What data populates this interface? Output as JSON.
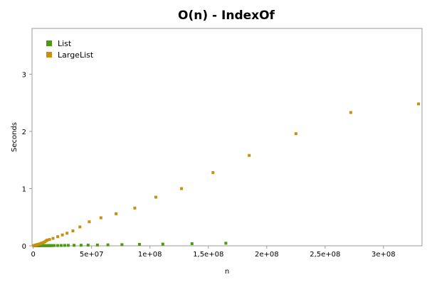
{
  "chart_data": {
    "type": "scatter",
    "title": "O(n) - IndexOf",
    "xlabel": "n",
    "ylabel": "Seconds",
    "xlim": [
      -1000000,
      333000000
    ],
    "ylim": [
      0,
      3.8
    ],
    "x_ticks": [
      0,
      50000000,
      100000000,
      150000000,
      200000000,
      250000000,
      300000000
    ],
    "x_tick_labels": [
      "0",
      "5e+07",
      "1e+08",
      "1,5e+08",
      "2e+08",
      "2,5e+08",
      "3e+08"
    ],
    "y_ticks": [
      0,
      1,
      2,
      3
    ],
    "y_tick_labels": [
      "0",
      "1",
      "2",
      "3"
    ],
    "grid": false,
    "legend_position": "top-left",
    "series": [
      {
        "name": "List",
        "color": "#4a9a12",
        "x": [
          500000,
          1000000,
          1500000,
          2000000,
          2500000,
          3000000,
          3500000,
          4000000,
          5000000,
          6000000,
          7000000,
          8000000,
          9000000,
          10000000,
          11000000,
          12000000,
          13000000,
          14000000,
          15000000,
          16000000,
          18000000,
          21000000,
          24000000,
          27000000,
          30000000,
          35000000,
          41000000,
          47000000,
          55000000,
          64000000,
          76000000,
          91000000,
          111000000,
          136000000,
          165000000
        ],
        "y": [
          0.001,
          0.001,
          0.001,
          0.001,
          0.001,
          0.002,
          0.002,
          0.002,
          0.002,
          0.002,
          0.002,
          0.003,
          0.003,
          0.003,
          0.003,
          0.003,
          0.004,
          0.004,
          0.004,
          0.004,
          0.005,
          0.005,
          0.006,
          0.007,
          0.008,
          0.009,
          0.01,
          0.012,
          0.014,
          0.016,
          0.02,
          0.025,
          0.03,
          0.037,
          0.045
        ]
      },
      {
        "name": "LargeList",
        "color": "#c8900c",
        "x": [
          500000,
          1000000,
          1500000,
          2000000,
          2500000,
          3000000,
          3500000,
          4000000,
          5000000,
          6000000,
          7000000,
          8000000,
          9000000,
          10000000,
          11000000,
          12000000,
          14000000,
          17000000,
          21000000,
          25000000,
          29000000,
          34000000,
          40000000,
          48000000,
          58000000,
          71000000,
          87000000,
          105000000,
          127000000,
          154000000,
          185000000,
          225000000,
          272000000,
          330000000
        ],
        "y": [
          0.003,
          0.005,
          0.008,
          0.011,
          0.014,
          0.017,
          0.02,
          0.025,
          0.03,
          0.035,
          0.045,
          0.05,
          0.06,
          0.07,
          0.085,
          0.1,
          0.11,
          0.13,
          0.16,
          0.19,
          0.22,
          0.26,
          0.33,
          0.42,
          0.49,
          0.56,
          0.66,
          0.85,
          1.0,
          1.28,
          1.58,
          1.96,
          2.33,
          2.48
        ]
      }
    ]
  }
}
